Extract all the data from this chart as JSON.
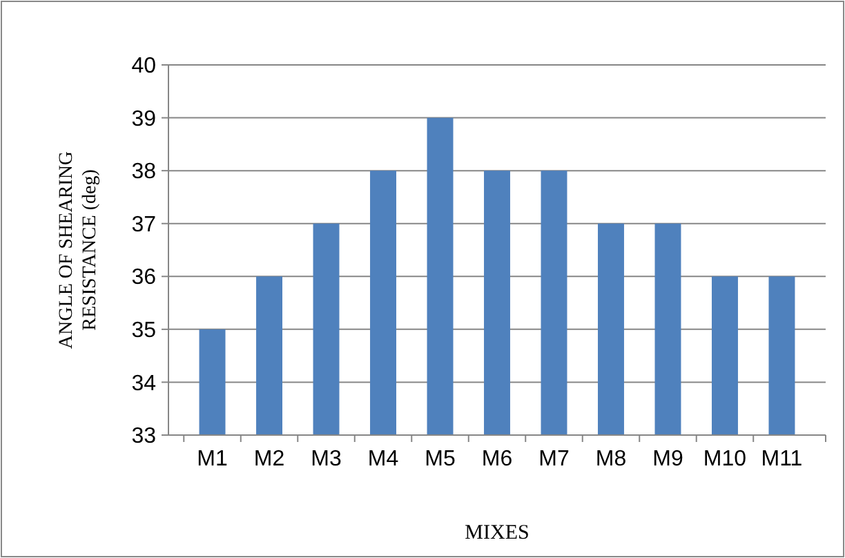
{
  "chart_data": {
    "type": "bar",
    "xlabel": "MIXES",
    "ylabel": "ANGLE OF SHEARING\nRESISTANCE (deg)",
    "categories": [
      "M1",
      "M2",
      "M3",
      "M4",
      "M5",
      "M6",
      "M7",
      "M8",
      "M9",
      "M10",
      "M11"
    ],
    "values": [
      35,
      36,
      37,
      38,
      39,
      38,
      38,
      37,
      37,
      36,
      36
    ],
    "color": "#4f81bd",
    "ylim": [
      33,
      40
    ],
    "yticks": [
      33,
      34,
      35,
      36,
      37,
      38,
      39,
      40
    ],
    "grid": "y"
  }
}
